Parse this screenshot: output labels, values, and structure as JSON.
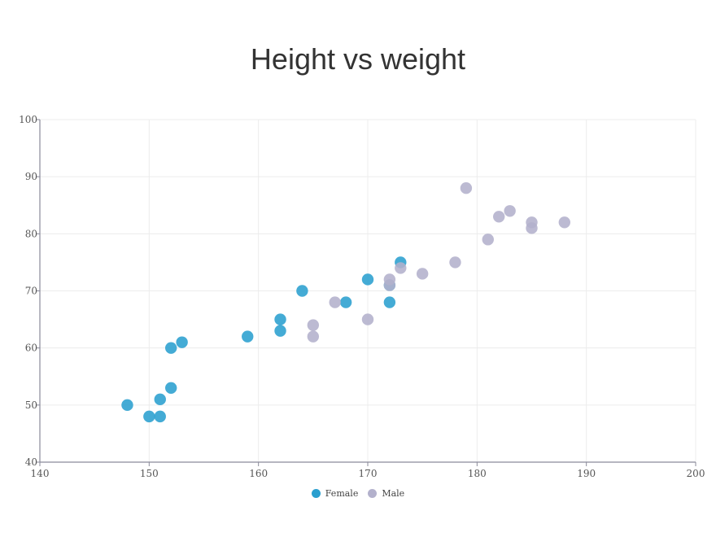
{
  "title": "Height vs weight",
  "colors": {
    "female": "#2a9fcf",
    "male": "#b3b1cc"
  },
  "legend": [
    {
      "label": "Female",
      "key": "female"
    },
    {
      "label": "Male",
      "key": "male"
    }
  ],
  "chart_data": {
    "type": "scatter",
    "title": "Height vs weight",
    "xlabel": "",
    "ylabel": "",
    "xlim": [
      140,
      200
    ],
    "ylim": [
      40,
      100
    ],
    "xticks": [
      140,
      150,
      160,
      170,
      180,
      190,
      200
    ],
    "yticks": [
      40,
      50,
      60,
      70,
      80,
      90,
      100
    ],
    "grid": true,
    "legend_position": "bottom",
    "series": [
      {
        "name": "Female",
        "color": "#2a9fcf",
        "points": [
          [
            148,
            50
          ],
          [
            150,
            48
          ],
          [
            151,
            48
          ],
          [
            151,
            51
          ],
          [
            152,
            53
          ],
          [
            152,
            60
          ],
          [
            153,
            61
          ],
          [
            159,
            62
          ],
          [
            162,
            63
          ],
          [
            162,
            65
          ],
          [
            164,
            70
          ],
          [
            168,
            68
          ],
          [
            170,
            72
          ],
          [
            172,
            68
          ],
          [
            172,
            71
          ],
          [
            173,
            75
          ]
        ]
      },
      {
        "name": "Male",
        "color": "#b3b1cc",
        "points": [
          [
            165,
            62
          ],
          [
            165,
            64
          ],
          [
            167,
            68
          ],
          [
            170,
            65
          ],
          [
            172,
            71
          ],
          [
            172,
            72
          ],
          [
            173,
            74
          ],
          [
            175,
            73
          ],
          [
            178,
            75
          ],
          [
            179,
            88
          ],
          [
            181,
            79
          ],
          [
            182,
            83
          ],
          [
            183,
            84
          ],
          [
            185,
            81
          ],
          [
            185,
            82
          ],
          [
            188,
            82
          ]
        ]
      }
    ]
  }
}
